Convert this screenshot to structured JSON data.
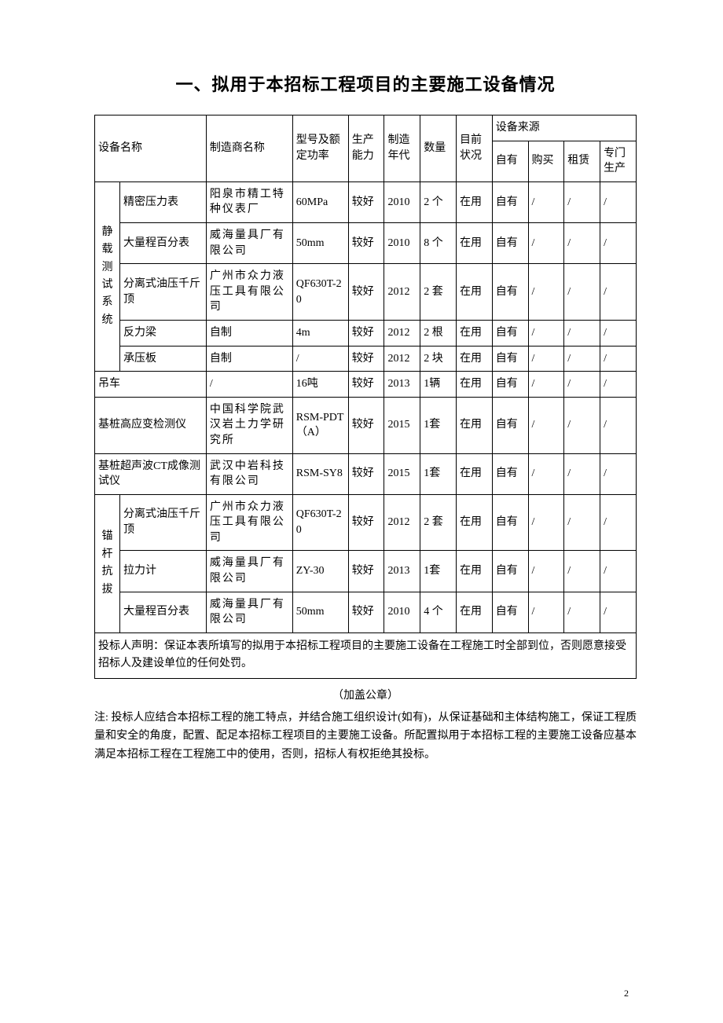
{
  "title": "一、拟用于本招标工程项目的主要施工设备情况",
  "headers": {
    "equip_name": "设备名称",
    "mfr": "制造商名称",
    "model": "型号及额定功率",
    "capacity": "生产能力",
    "year": "制造年代",
    "qty": "数量",
    "status": "目前状况",
    "source": "设备来源",
    "src_own": "自有",
    "src_buy": "购买",
    "src_rent": "租赁",
    "src_make": "专门生产"
  },
  "groups": [
    {
      "label": "静载测试系统",
      "rows": [
        {
          "name": "精密压力表",
          "mfr": "阳泉市精工特种仪表厂",
          "mfr_spread": true,
          "model": "60MPa",
          "cap": "较好",
          "year": "2010",
          "qty": "2 个",
          "status": "在用",
          "own": "自有",
          "buy": "/",
          "rent": "/",
          "make": "/"
        },
        {
          "name": "大量程百分表",
          "mfr": "威海量具厂有限公司",
          "mfr_spread": true,
          "model": "50mm",
          "cap": "较好",
          "year": "2010",
          "qty": "8 个",
          "status": "在用",
          "own": "自有",
          "buy": "/",
          "rent": "/",
          "make": "/"
        },
        {
          "name": "分离式油压千斤顶",
          "mfr": "广州市众力液压工具有限公司",
          "mfr_spread": true,
          "model": "QF630T-20",
          "cap": "较好",
          "year": "2012",
          "qty": "2 套",
          "status": "在用",
          "own": "自有",
          "buy": "/",
          "rent": "/",
          "make": "/"
        },
        {
          "name": "反力梁",
          "mfr": "自制",
          "model": "4m",
          "cap": "较好",
          "year": "2012",
          "qty": "2 根",
          "status": "在用",
          "own": "自有",
          "buy": "/",
          "rent": "/",
          "make": "/"
        },
        {
          "name": "承压板",
          "mfr": "自制",
          "model": "/",
          "cap": "较好",
          "year": "2012",
          "qty": "2 块",
          "status": "在用",
          "own": "自有",
          "buy": "/",
          "rent": "/",
          "make": "/"
        }
      ]
    }
  ],
  "singles": [
    {
      "name": "吊车",
      "mfr": "/",
      "model": "16吨",
      "cap": "较好",
      "year": "2013",
      "qty": "1辆",
      "status": "在用",
      "own": "自有",
      "buy": "/",
      "rent": "/",
      "make": "/"
    },
    {
      "name": "基桩高应变检测仪",
      "mfr": "中国科学院武汉岩土力学研究所",
      "mfr_spread": true,
      "model": "RSM-PDT（A）",
      "cap": "较好",
      "year": "2015",
      "qty": "1套",
      "status": "在用",
      "own": "自有",
      "buy": "/",
      "rent": "/",
      "make": "/"
    },
    {
      "name": "基桩超声波CT成像测试仪",
      "mfr": "武汉中岩科技有限公司",
      "mfr_spread": true,
      "model": "RSM-SY8",
      "cap": "较好",
      "year": "2015",
      "qty": "1套",
      "status": "在用",
      "own": "自有",
      "buy": "/",
      "rent": "/",
      "make": "/"
    }
  ],
  "group2": {
    "label": "锚杆抗拔",
    "rows": [
      {
        "name": "分离式油压千斤顶",
        "mfr": "广州市众力液压工具有限公司",
        "mfr_spread": true,
        "model": "QF630T-20",
        "cap": "较好",
        "year": "2012",
        "qty": "2 套",
        "status": "在用",
        "own": "自有",
        "buy": "/",
        "rent": "/",
        "make": "/"
      },
      {
        "name": "拉力计",
        "mfr": "威海量具厂有限公司",
        "mfr_spread": true,
        "model": "ZY-30",
        "cap": "较好",
        "year": "2013",
        "qty": "1套",
        "status": "在用",
        "own": "自有",
        "buy": "/",
        "rent": "/",
        "make": "/"
      },
      {
        "name": "大量程百分表",
        "mfr": "威海量具厂有限公司",
        "mfr_spread": true,
        "model": "50mm",
        "cap": "较好",
        "year": "2010",
        "qty": "4 个",
        "status": "在用",
        "own": "自有",
        "buy": "/",
        "rent": "/",
        "make": "/"
      }
    ]
  },
  "declaration": "投标人声明：保证本表所填写的拟用于本招标工程项目的主要施工设备在工程施工时全部到位，否则愿意接受招标人及建设单位的任何处罚。",
  "seal": "（加盖公章）",
  "note": "注: 投标人应结合本招标工程的施工特点，并结合施工组织设计(如有)，从保证基础和主体结构施工，保证工程质量和安全的角度，配置、配足本招标工程项目的主要施工设备。所配置拟用于本招标工程的主要施工设备应基本满足本招标工程在工程施工中的使用，否则，招标人有权拒绝其投标。",
  "page_num": "2",
  "colors": {
    "text": "#000000",
    "border": "#000000",
    "background": "#ffffff"
  },
  "table_style": {
    "border_width": 1,
    "font_size": 14,
    "title_font_size": 22
  }
}
